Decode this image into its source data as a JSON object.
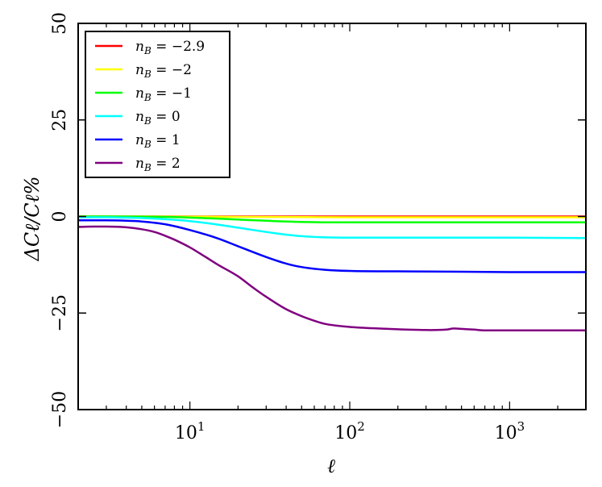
{
  "chart_data": {
    "type": "line",
    "xscale": "log",
    "xlabel": "ℓ",
    "ylabel": "ΔCℓ/Cℓ%",
    "xlim": [
      2,
      3000
    ],
    "ylim": [
      -50,
      50
    ],
    "yticks": [
      {
        "value": 50,
        "label": "50"
      },
      {
        "value": 25,
        "label": "25"
      },
      {
        "value": 0,
        "label": "0"
      },
      {
        "value": -25,
        "label": "−25"
      },
      {
        "value": -50,
        "label": "−50"
      }
    ],
    "xticks": [
      {
        "value": 10,
        "base": "10",
        "exp": "1"
      },
      {
        "value": 100,
        "base": "10",
        "exp": "2"
      },
      {
        "value": 1000,
        "base": "10",
        "exp": "3"
      }
    ],
    "legend_position": "top-left",
    "grid": false,
    "series": [
      {
        "name": "nB = −2.9",
        "sub": "B",
        "value": "−2.9",
        "color": "#ff0000",
        "x": [
          2,
          3000
        ],
        "y": [
          0.0,
          0.0
        ]
      },
      {
        "name": "nB = −2",
        "sub": "B",
        "value": "−2",
        "color": "#ffff00",
        "x": [
          2,
          3,
          5,
          10,
          20,
          50,
          100,
          3000
        ],
        "y": [
          0.0,
          0.0,
          0.0,
          -0.05,
          -0.1,
          -0.15,
          -0.2,
          -0.2
        ]
      },
      {
        "name": "nB = −1",
        "sub": "B",
        "value": "−1",
        "color": "#00ff00",
        "x": [
          2,
          3,
          5,
          8,
          10,
          15,
          20,
          30,
          40,
          50,
          70,
          100,
          200,
          500,
          1000,
          3000
        ],
        "y": [
          0.0,
          0.0,
          -0.05,
          -0.15,
          -0.3,
          -0.55,
          -0.8,
          -1.1,
          -1.3,
          -1.4,
          -1.5,
          -1.5,
          -1.5,
          -1.5,
          -1.5,
          -1.5
        ]
      },
      {
        "name": "nB = 0",
        "sub": "B",
        "value": "0",
        "color": "#00ffff",
        "x": [
          2,
          3,
          4,
          5,
          7,
          10,
          15,
          20,
          30,
          40,
          50,
          70,
          100,
          200,
          500,
          1000,
          3000
        ],
        "y": [
          -0.2,
          -0.2,
          -0.3,
          -0.4,
          -0.7,
          -1.2,
          -2.1,
          -2.9,
          -4.0,
          -4.7,
          -5.1,
          -5.4,
          -5.5,
          -5.5,
          -5.5,
          -5.5,
          -5.6
        ]
      },
      {
        "name": "nB = 1",
        "sub": "B",
        "value": "1",
        "color": "#0000ff",
        "x": [
          2,
          3,
          4,
          5,
          7,
          10,
          15,
          20,
          30,
          40,
          50,
          70,
          100,
          200,
          500,
          1000,
          3000
        ],
        "y": [
          -1.0,
          -1.0,
          -1.1,
          -1.3,
          -2.0,
          -3.5,
          -5.7,
          -7.7,
          -10.5,
          -12.2,
          -13.1,
          -13.8,
          -14.1,
          -14.2,
          -14.3,
          -14.4,
          -14.4
        ]
      },
      {
        "name": "nB = 2",
        "sub": "B",
        "value": "2",
        "color": "#800080",
        "x": [
          2,
          2.5,
          3,
          4,
          5,
          6,
          7,
          8,
          10,
          12,
          15,
          20,
          25,
          30,
          40,
          50,
          60,
          70,
          100,
          150,
          200,
          300,
          400,
          450,
          500,
          600,
          700,
          1000,
          2000,
          3000
        ],
        "y": [
          -2.7,
          -2.6,
          -2.6,
          -2.8,
          -3.3,
          -4.0,
          -5.0,
          -6.0,
          -8.0,
          -10.0,
          -12.5,
          -15.5,
          -18.5,
          -20.8,
          -24.0,
          -25.8,
          -27.0,
          -27.8,
          -28.6,
          -29.0,
          -29.2,
          -29.4,
          -29.3,
          -29.0,
          -29.1,
          -29.3,
          -29.5,
          -29.5,
          -29.5,
          -29.5
        ]
      }
    ]
  }
}
